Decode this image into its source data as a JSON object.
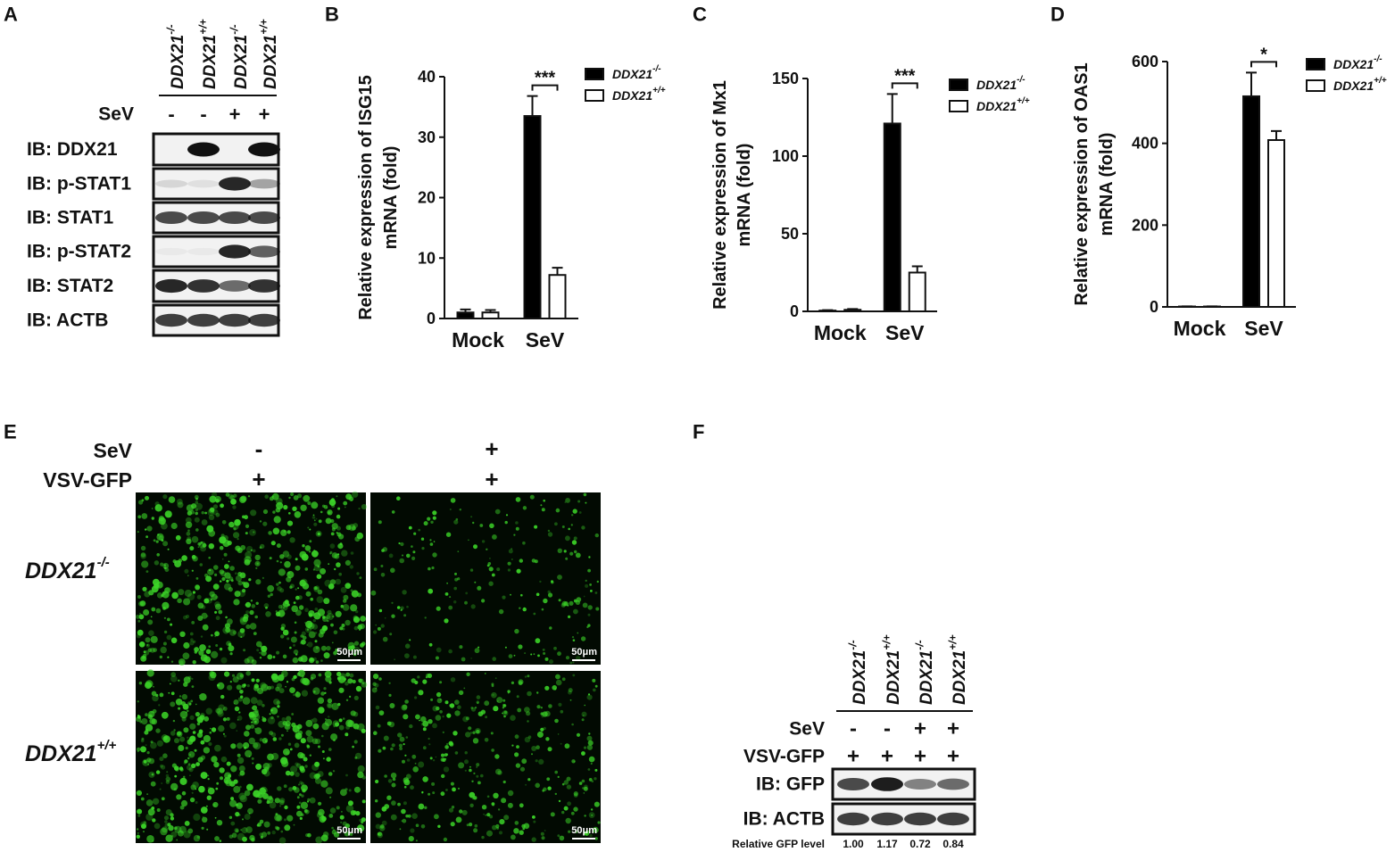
{
  "panel_labels": [
    "A",
    "B",
    "C",
    "D",
    "E",
    "F"
  ],
  "blot_a": {
    "samples": [
      {
        "gene": "DDX21",
        "genotype": "-/-"
      },
      {
        "gene": "DDX21",
        "genotype": "+/+"
      },
      {
        "gene": "DDX21",
        "genotype": "-/-"
      },
      {
        "gene": "DDX21",
        "genotype": "+/+"
      }
    ],
    "treatment_label": "SeV",
    "treatment": [
      "-",
      "-",
      "+",
      "+"
    ],
    "rows": [
      "IB: DDX21",
      "IB: p-STAT1",
      "IB: STAT1",
      "IB: p-STAT2",
      "IB: STAT2",
      "IB: ACTB"
    ]
  },
  "chart_data": [
    {
      "type": "bar",
      "ylabel": [
        "Relative expression of ISG15",
        "mRNA (fold)"
      ],
      "categories": [
        "Mock",
        "SeV"
      ],
      "series": [
        {
          "name": "DDX21",
          "name_sup": "-/-",
          "color": "#000000",
          "values": [
            1.0,
            33.5
          ],
          "errors": [
            0.5,
            3.3
          ]
        },
        {
          "name": "DDX21",
          "name_sup": "+/+",
          "color": "#ffffff",
          "values": [
            1.0,
            7.2
          ],
          "errors": [
            0.4,
            1.2
          ]
        }
      ],
      "ylim": [
        0,
        40
      ],
      "yticks": [
        0,
        10,
        20,
        30,
        40
      ],
      "annotation": "***"
    },
    {
      "type": "bar",
      "ylabel": [
        "Relative expression of Mx1",
        "mRNA (fold)"
      ],
      "categories": [
        "Mock",
        "SeV"
      ],
      "series": [
        {
          "name": "DDX21",
          "name_sup": "-/-",
          "color": "#000000",
          "values": [
            0.5,
            121
          ],
          "errors": [
            0.3,
            19
          ]
        },
        {
          "name": "DDX21",
          "name_sup": "+/+",
          "color": "#ffffff",
          "values": [
            1.0,
            25
          ],
          "errors": [
            0.5,
            4
          ]
        }
      ],
      "ylim": [
        0,
        150
      ],
      "yticks": [
        0,
        50,
        100,
        150
      ],
      "annotation": "***"
    },
    {
      "type": "bar",
      "ylabel": [
        "Relative expression of OAS1",
        "mRNA (fold)"
      ],
      "categories": [
        "Mock",
        "SeV"
      ],
      "series": [
        {
          "name": "DDX21",
          "name_sup": "-/-",
          "color": "#000000",
          "values": [
            1,
            515
          ],
          "errors": [
            0.5,
            58
          ]
        },
        {
          "name": "DDX21",
          "name_sup": "+/+",
          "color": "#ffffff",
          "values": [
            1,
            408
          ],
          "errors": [
            0.5,
            22
          ]
        }
      ],
      "ylim": [
        0,
        600
      ],
      "yticks": [
        0,
        200,
        400,
        600
      ],
      "annotation": "*"
    }
  ],
  "imaging_e": {
    "header_labels": [
      "SeV",
      "VSV-GFP"
    ],
    "column_treatments": [
      [
        "-",
        "+"
      ],
      [
        "+",
        "+"
      ]
    ],
    "row_labels": [
      {
        "gene": "DDX21",
        "genotype": "-/-"
      },
      {
        "gene": "DDX21",
        "genotype": "+/+"
      }
    ],
    "scale_bars": [
      "50μm",
      "50μm",
      "50μm",
      "50μm"
    ]
  },
  "blot_f": {
    "samples": [
      {
        "gene": "DDX21",
        "genotype": "-/-"
      },
      {
        "gene": "DDX21",
        "genotype": "+/+"
      },
      {
        "gene": "DDX21",
        "genotype": "-/-"
      },
      {
        "gene": "DDX21",
        "genotype": "+/+"
      }
    ],
    "treatments": [
      {
        "label": "SeV",
        "values": [
          "-",
          "-",
          "+",
          "+"
        ]
      },
      {
        "label": "VSV-GFP",
        "values": [
          "+",
          "+",
          "+",
          "+"
        ]
      }
    ],
    "rows": [
      "IB: GFP",
      "IB: ACTB"
    ],
    "quant_label": "Relative GFP level",
    "quant": [
      "1.00",
      "1.17",
      "0.72",
      "0.84"
    ]
  }
}
